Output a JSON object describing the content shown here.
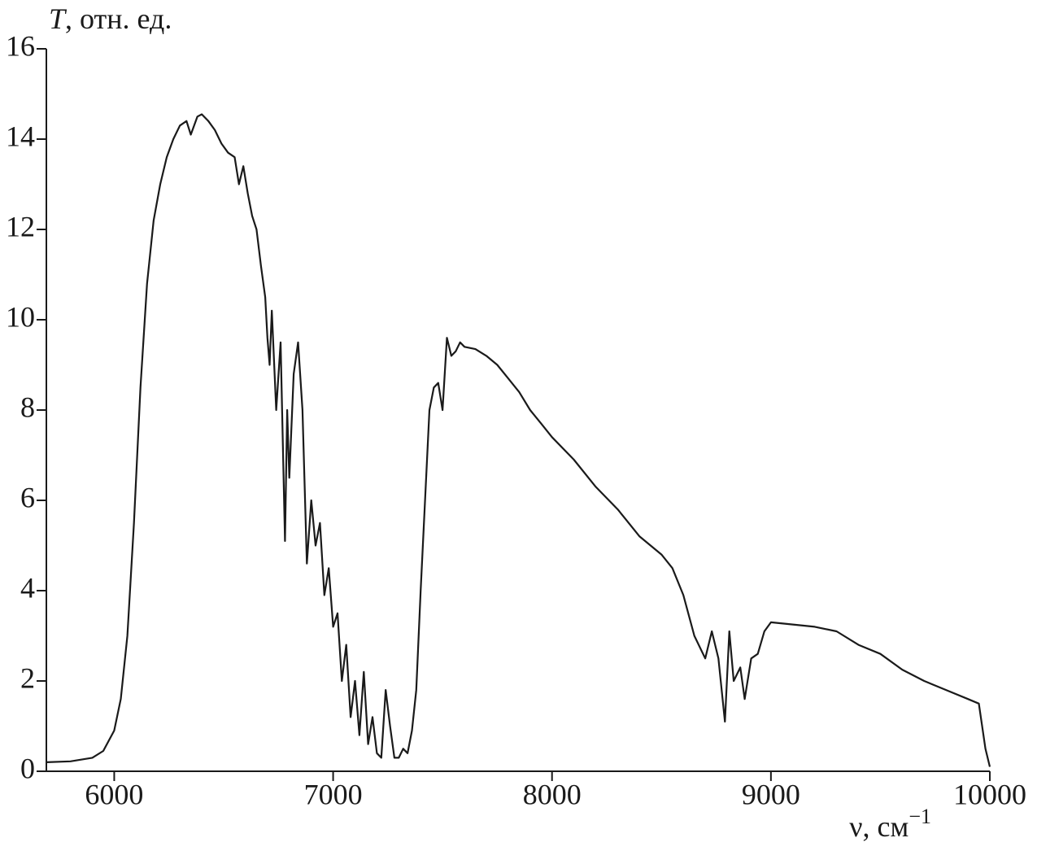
{
  "chart_data": {
    "type": "line",
    "y_label_symbol": "T",
    "y_label": ", отн. ед.",
    "x_label": "ν, см",
    "x_label_exponent": "−1",
    "xlim": [
      5690,
      10000
    ],
    "ylim": [
      0,
      16
    ],
    "xticks": [
      6000,
      7000,
      8000,
      9000,
      10000
    ],
    "yticks": [
      0,
      2,
      4,
      6,
      8,
      10,
      12,
      14,
      16
    ],
    "grid": false,
    "series": [
      {
        "color": "#1a1a1a",
        "x": [
          5690,
          5800,
          5900,
          5950,
          6000,
          6030,
          6060,
          6090,
          6120,
          6150,
          6180,
          6210,
          6240,
          6270,
          6300,
          6330,
          6350,
          6380,
          6400,
          6430,
          6460,
          6490,
          6520,
          6550,
          6570,
          6590,
          6610,
          6630,
          6650,
          6670,
          6690,
          6700,
          6710,
          6720,
          6740,
          6760,
          6780,
          6790,
          6800,
          6820,
          6840,
          6860,
          6880,
          6900,
          6920,
          6940,
          6960,
          6980,
          7000,
          7020,
          7040,
          7060,
          7080,
          7100,
          7120,
          7140,
          7160,
          7180,
          7200,
          7220,
          7240,
          7260,
          7280,
          7300,
          7320,
          7340,
          7360,
          7380,
          7400,
          7420,
          7440,
          7460,
          7480,
          7500,
          7520,
          7540,
          7560,
          7580,
          7600,
          7650,
          7700,
          7750,
          7800,
          7850,
          7900,
          7950,
          8000,
          8100,
          8200,
          8300,
          8400,
          8500,
          8550,
          8600,
          8650,
          8700,
          8730,
          8760,
          8790,
          8810,
          8830,
          8860,
          8880,
          8910,
          8940,
          8970,
          9000,
          9100,
          9200,
          9300,
          9400,
          9500,
          9600,
          9700,
          9800,
          9900,
          9950,
          9980,
          10000
        ],
        "values": [
          0.2,
          0.22,
          0.3,
          0.45,
          0.9,
          1.6,
          3.0,
          5.5,
          8.5,
          10.8,
          12.2,
          13.0,
          13.6,
          14.0,
          14.3,
          14.4,
          14.1,
          14.5,
          14.55,
          14.4,
          14.2,
          13.9,
          13.7,
          13.6,
          13.0,
          13.4,
          12.8,
          12.3,
          12.0,
          11.2,
          10.5,
          9.6,
          9.0,
          10.2,
          8.0,
          9.5,
          5.1,
          8.0,
          6.5,
          8.8,
          9.5,
          8.0,
          4.6,
          6.0,
          5.0,
          5.5,
          3.9,
          4.5,
          3.2,
          3.5,
          2.0,
          2.8,
          1.2,
          2.0,
          0.8,
          2.2,
          0.6,
          1.2,
          0.4,
          0.3,
          1.8,
          1.0,
          0.3,
          0.3,
          0.5,
          0.4,
          0.9,
          1.8,
          4.0,
          6.0,
          8.0,
          8.5,
          8.6,
          8.0,
          9.6,
          9.2,
          9.3,
          9.5,
          9.4,
          9.35,
          9.2,
          9.0,
          8.7,
          8.4,
          8.0,
          7.7,
          7.4,
          6.9,
          6.3,
          5.8,
          5.2,
          4.8,
          4.5,
          3.9,
          3.0,
          2.5,
          3.1,
          2.5,
          1.1,
          3.1,
          2.0,
          2.3,
          1.6,
          2.5,
          2.6,
          3.1,
          3.3,
          3.25,
          3.2,
          3.1,
          2.8,
          2.6,
          2.25,
          2.0,
          1.8,
          1.6,
          1.5,
          0.5,
          0.1
        ]
      }
    ]
  }
}
